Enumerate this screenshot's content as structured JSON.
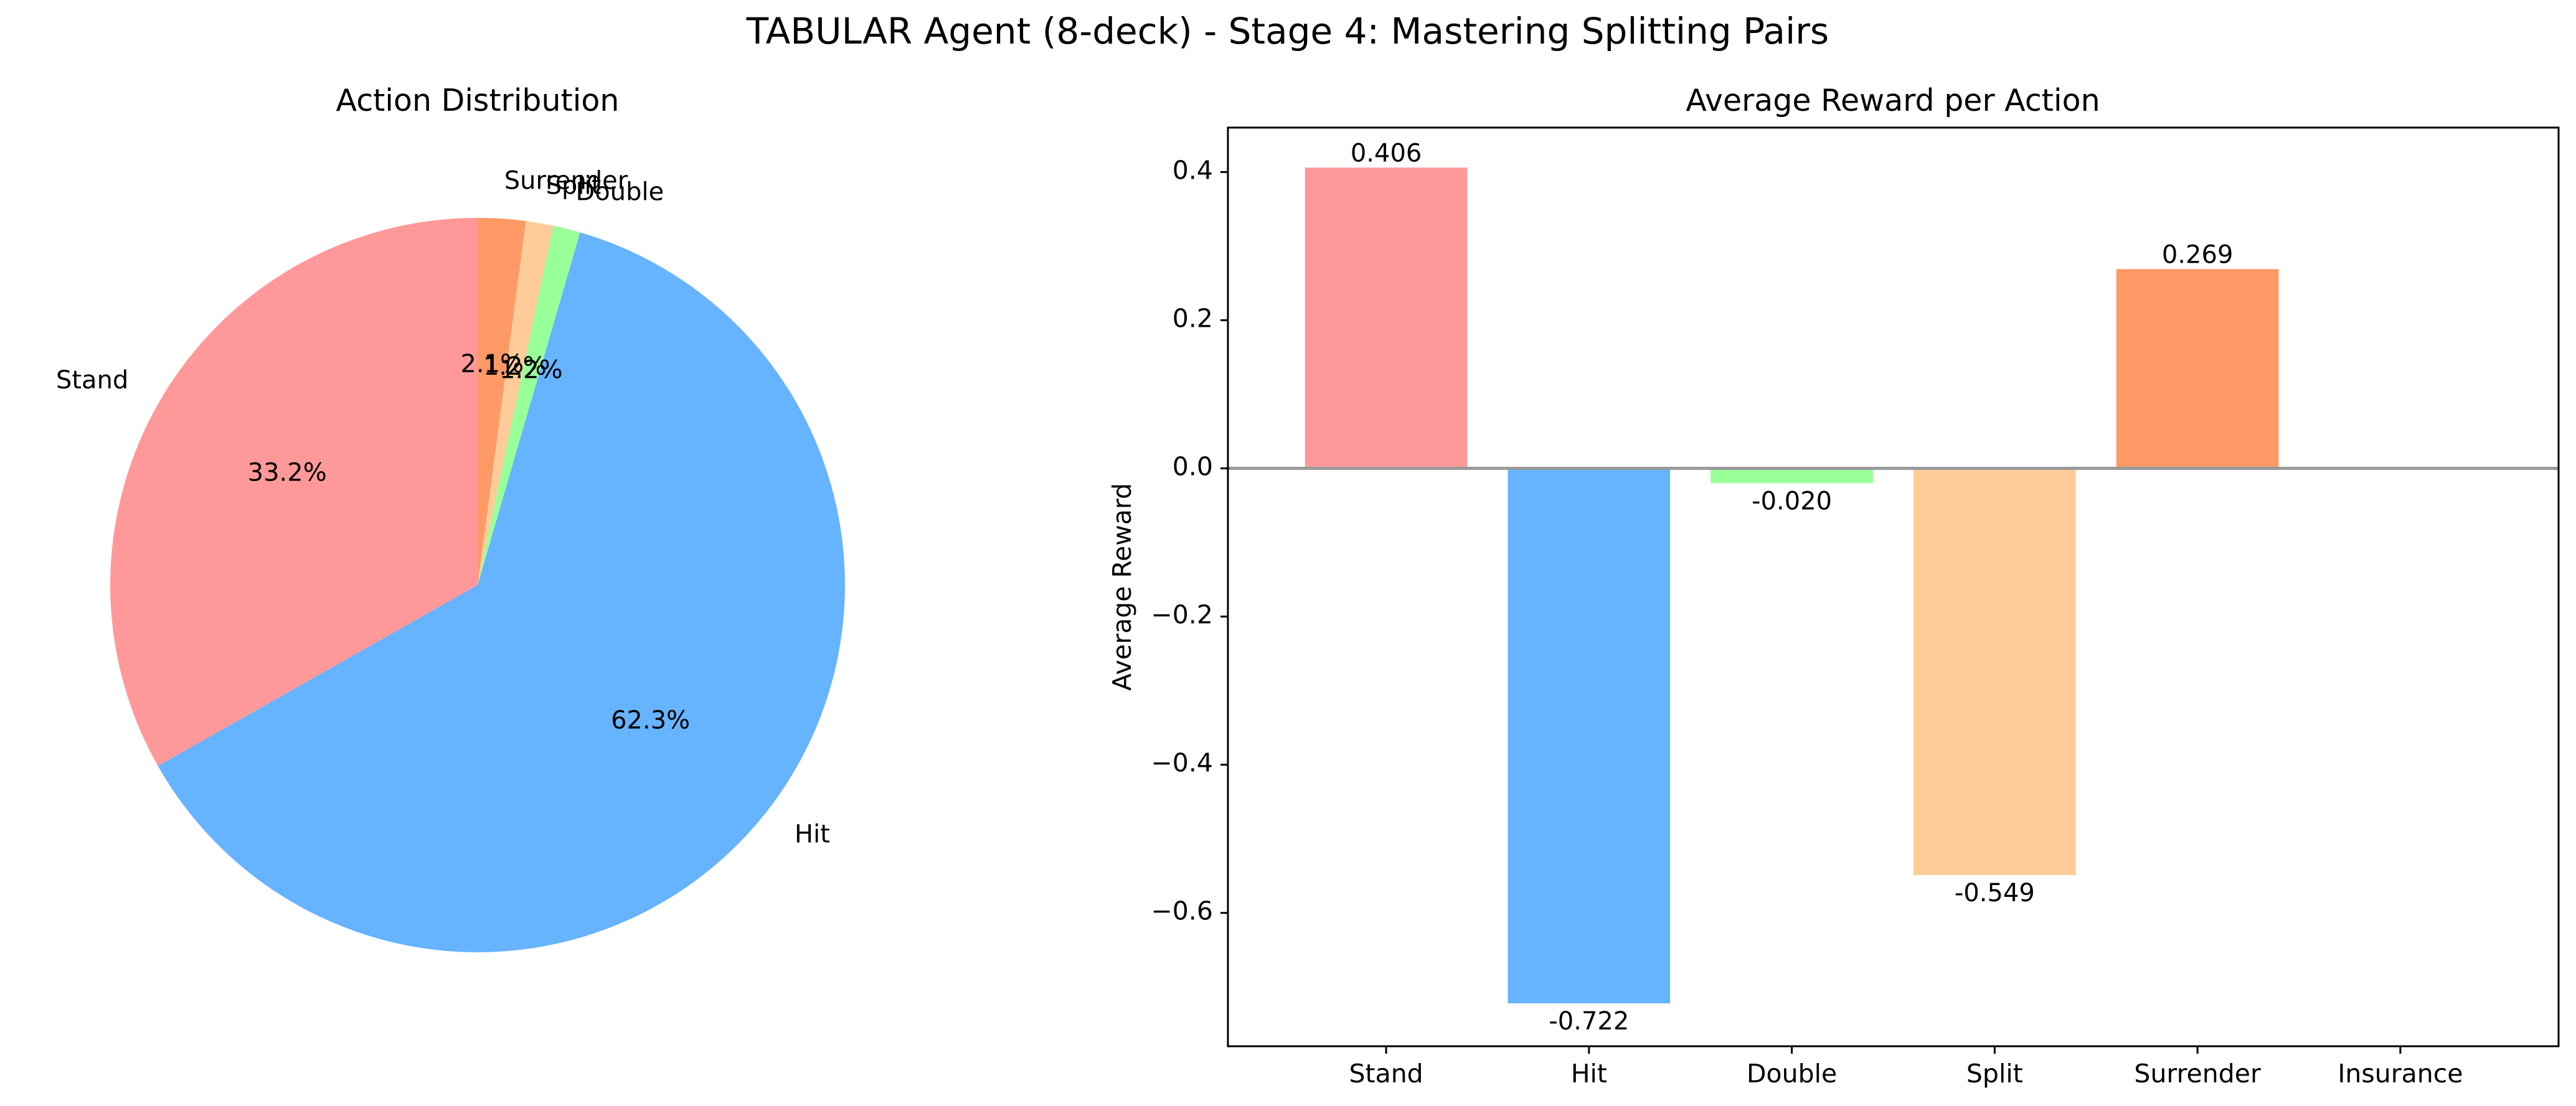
{
  "figure": {
    "title": "TABULAR Agent (8-deck) - Stage 4: Mastering Splitting Pairs"
  },
  "chart_data": [
    {
      "type": "pie",
      "title": "Action Distribution",
      "start_angle_deg": 90,
      "direction": "counterclockwise",
      "slices": [
        {
          "label": "Stand",
          "value": 33.2,
          "pct_label": "33.2%",
          "color": "#ff9999"
        },
        {
          "label": "Hit",
          "value": 62.3,
          "pct_label": "62.3%",
          "color": "#66b3ff"
        },
        {
          "label": "Double",
          "value": 1.2,
          "pct_label": "1.2%",
          "color": "#99ff99"
        },
        {
          "label": "Split",
          "value": 1.2,
          "pct_label": "1.2%",
          "color": "#ffcc99"
        },
        {
          "label": "Surrender",
          "value": 2.1,
          "pct_label": "2.1%",
          "color": "#ff9966"
        }
      ]
    },
    {
      "type": "bar",
      "title": "Average Reward per Action",
      "ylabel": "Average Reward",
      "xlabel": "",
      "categories": [
        "Stand",
        "Hit",
        "Double",
        "Split",
        "Surrender",
        "Insurance"
      ],
      "values": [
        0.406,
        -0.722,
        -0.02,
        -0.549,
        0.269,
        0
      ],
      "value_labels": [
        "0.406",
        "-0.722",
        "-0.020",
        "-0.549",
        "0.269",
        ""
      ],
      "colors": [
        "#ff9999",
        "#66b3ff",
        "#99ff99",
        "#ffcc99",
        "#ff9966",
        "#c2c2f0"
      ],
      "ylim": [
        -0.78,
        0.46
      ],
      "yticks": [
        0.4,
        0.2,
        0.0,
        -0.2,
        -0.4,
        -0.6
      ],
      "ytick_labels": [
        "0.4",
        "0.2",
        "0.0",
        "−0.2",
        "−0.4",
        "−0.6"
      ],
      "zero_line": true,
      "zero_line_color": "#999999"
    }
  ]
}
